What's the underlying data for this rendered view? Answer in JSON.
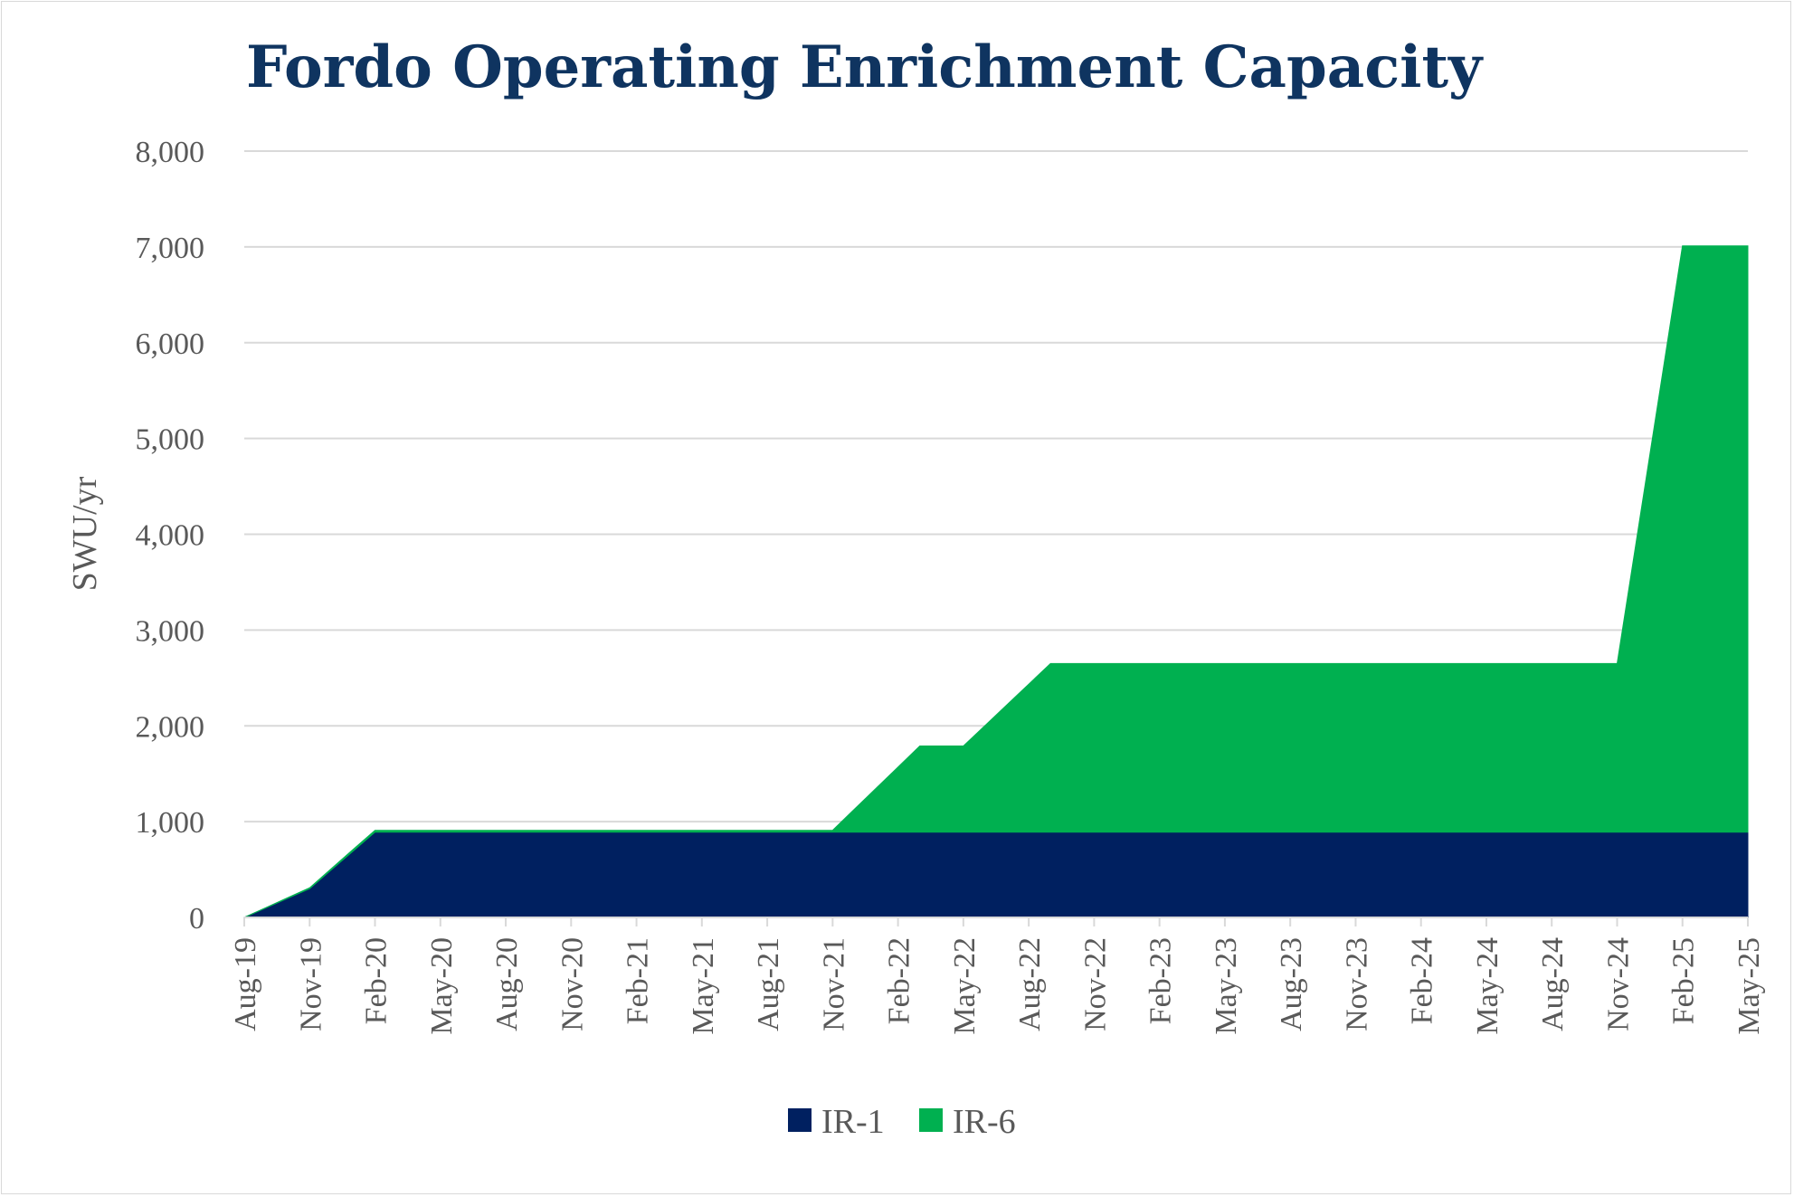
{
  "chart_data": {
    "type": "area",
    "stacked": true,
    "title": "Fordo Operating Enrichment Capacity",
    "ylabel": "SWU/yr",
    "xlabel": "",
    "ylim": [
      0,
      8000
    ],
    "yticks": [
      0,
      1000,
      2000,
      3000,
      4000,
      5000,
      6000,
      7000,
      8000
    ],
    "ytick_labels": [
      "0",
      "1,000",
      "2,000",
      "3,000",
      "4,000",
      "5,000",
      "6,000",
      "7,000",
      "8,000"
    ],
    "x_range": [
      "2019-08",
      "2025-05"
    ],
    "x_tick_labels": [
      "Aug-19",
      "Nov-19",
      "Feb-20",
      "May-20",
      "Aug-20",
      "Nov-20",
      "Feb-21",
      "May-21",
      "Aug-21",
      "Nov-21",
      "Feb-22",
      "May-22",
      "Aug-22",
      "Nov-22",
      "Feb-23",
      "May-23",
      "Aug-23",
      "Nov-23",
      "Feb-24",
      "May-24",
      "Aug-24",
      "Nov-24",
      "Feb-25",
      "May-25"
    ],
    "grid": true,
    "legend_position": "bottom",
    "series": [
      {
        "name": "IR-1",
        "color": "#002060",
        "points": [
          [
            "2019-08",
            0
          ],
          [
            "2019-11",
            300
          ],
          [
            "2020-02",
            890
          ],
          [
            "2021-11",
            890
          ],
          [
            "2025-05",
            890
          ]
        ]
      },
      {
        "name": "IR-6",
        "color": "#00b050",
        "points": [
          [
            "2019-08",
            0
          ],
          [
            "2020-02",
            20
          ],
          [
            "2021-11",
            20
          ],
          [
            "2022-03",
            900
          ],
          [
            "2022-05",
            900
          ],
          [
            "2022-09",
            1760
          ],
          [
            "2024-11",
            1760
          ],
          [
            "2025-02",
            6120
          ],
          [
            "2025-05",
            6120
          ]
        ]
      }
    ]
  }
}
